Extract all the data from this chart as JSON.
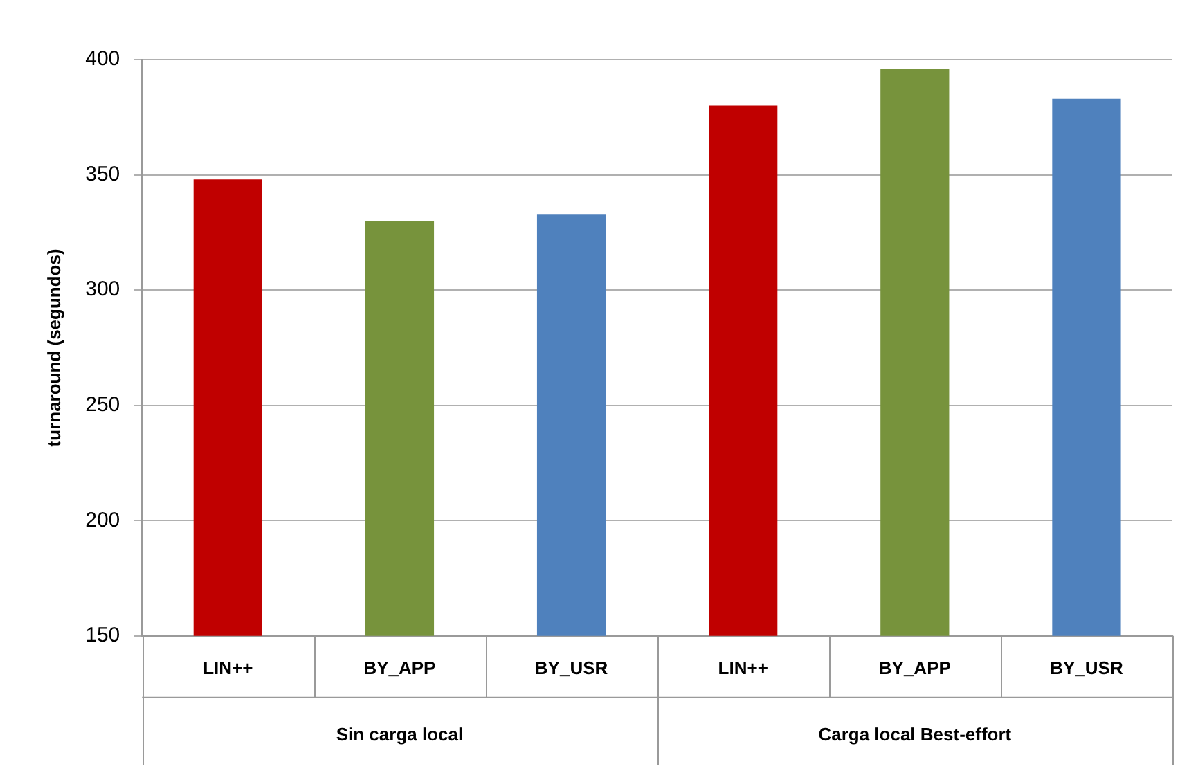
{
  "chart_data": {
    "type": "bar",
    "ylabel": "turnaround (segundos)",
    "categories": [
      "LIN++",
      "BY_APP",
      "BY_USR",
      "LIN++",
      "BY_APP",
      "BY_USR"
    ],
    "values": [
      348,
      330,
      333,
      380,
      396,
      383
    ],
    "colors": [
      "#c00000",
      "#77933c",
      "#4f81bd",
      "#c00000",
      "#77933c",
      "#4f81bd"
    ],
    "ylim": [
      150,
      400
    ],
    "yticks": [
      150,
      200,
      250,
      300,
      350,
      400
    ],
    "grid": "y",
    "legend": false,
    "annotations": [
      "Sin carga local",
      "Carga local Best-effort"
    ]
  }
}
